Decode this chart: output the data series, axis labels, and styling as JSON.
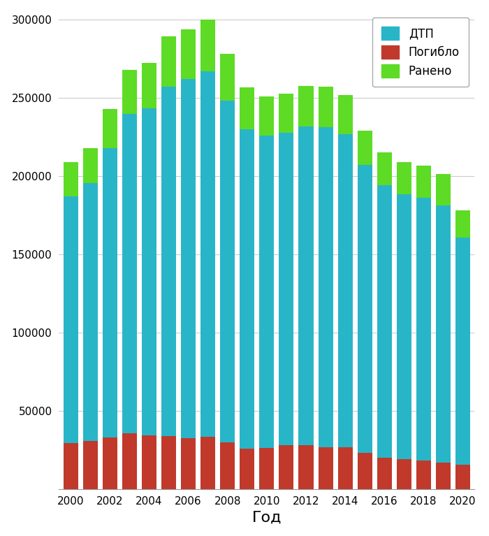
{
  "years": [
    2000,
    2001,
    2002,
    2003,
    2004,
    2005,
    2006,
    2007,
    2008,
    2009,
    2010,
    2011,
    2012,
    2013,
    2014,
    2015,
    2016,
    2017,
    2018,
    2019,
    2020
  ],
  "dtp": [
    157594,
    164403,
    184365,
    204068,
    208558,
    223342,
    229140,
    233809,
    218322,
    203603,
    199431,
    199868,
    203597,
    204068,
    199720,
    184000,
    173694,
    169432,
    168099,
    164358,
    145073
  ],
  "pogiblo": [
    29594,
    30916,
    33243,
    35602,
    34506,
    33957,
    32724,
    33308,
    29936,
    26084,
    26567,
    27953,
    27991,
    27025,
    26963,
    23114,
    20308,
    19088,
    18214,
    16981,
    15564
  ],
  "raneno": [
    21500,
    22500,
    25000,
    28000,
    29000,
    32000,
    32000,
    33000,
    30000,
    27000,
    25000,
    25000,
    26000,
    26000,
    25000,
    22000,
    21000,
    20500,
    20500,
    20000,
    17500
  ],
  "color_dtp": "#29b5c8",
  "color_pogiblo": "#c0392b",
  "color_raneno": "#5ddb25",
  "xlabel": "Год",
  "legend_dtp": "ДТП",
  "legend_pogiblo": "Погибло",
  "legend_raneno": "Ранено",
  "ylim": [
    0,
    305000
  ],
  "yticks": [
    0,
    50000,
    100000,
    150000,
    200000,
    250000,
    300000
  ],
  "background_color": "#ffffff",
  "grid_color": "#cccccc",
  "bar_width": 0.75,
  "legend_fontsize": 12,
  "xlabel_fontsize": 16,
  "tick_fontsize": 11,
  "figsize": [
    7.0,
    7.67
  ],
  "dpi": 100
}
